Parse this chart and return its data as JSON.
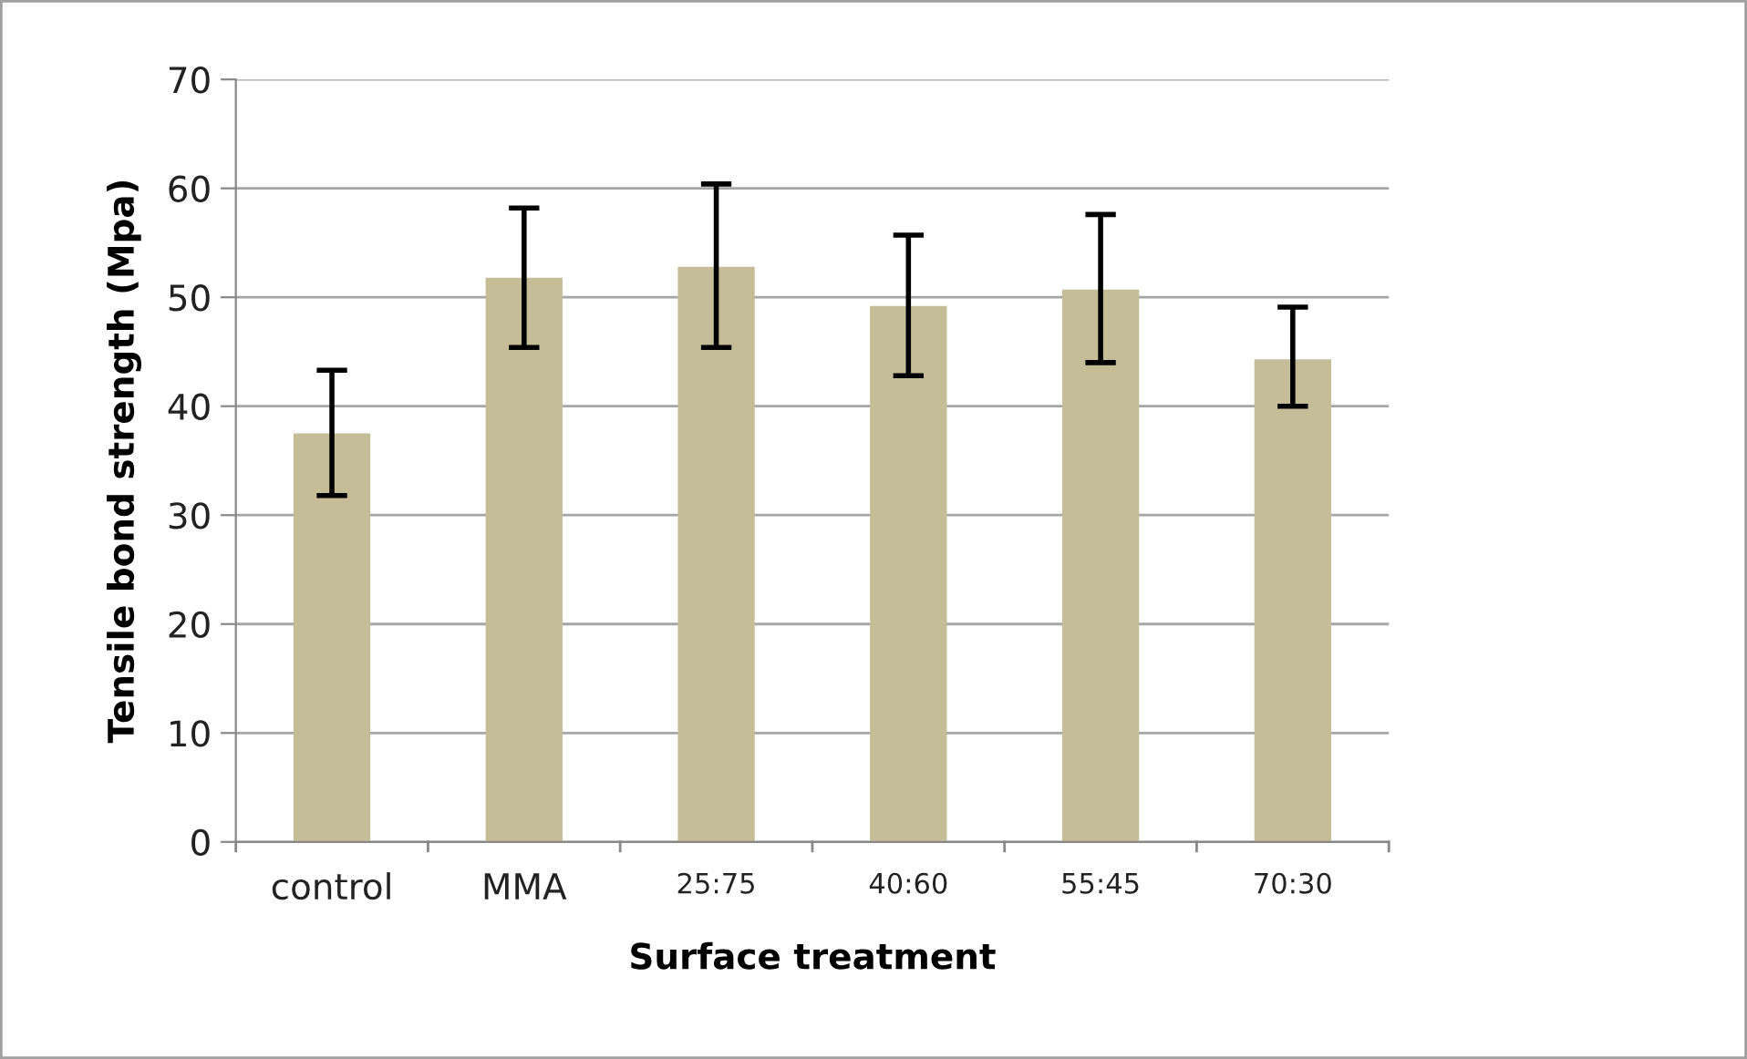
{
  "chart_data": {
    "type": "bar",
    "xlabel": "Surface treatment",
    "ylabel": "Tensile bond strength (Mpa)",
    "categories": [
      "control",
      "MMA",
      "25:75",
      "40:60",
      "55:45",
      "70:30"
    ],
    "series": [
      {
        "color": "#c4bd97",
        "values": [
          37.5,
          51.8,
          52.8,
          49.2,
          50.7,
          44.3
        ],
        "errors": [
          [
            31.8,
            43.3
          ],
          [
            45.4,
            58.2
          ],
          [
            45.4,
            60.4
          ],
          [
            42.8,
            55.7
          ],
          [
            44.0,
            57.6
          ],
          [
            40.0,
            49.1
          ]
        ]
      }
    ],
    "ylim": [
      0,
      70
    ],
    "yticks": [
      0,
      10,
      20,
      30,
      40,
      50,
      60,
      70
    ],
    "grid": "y"
  }
}
